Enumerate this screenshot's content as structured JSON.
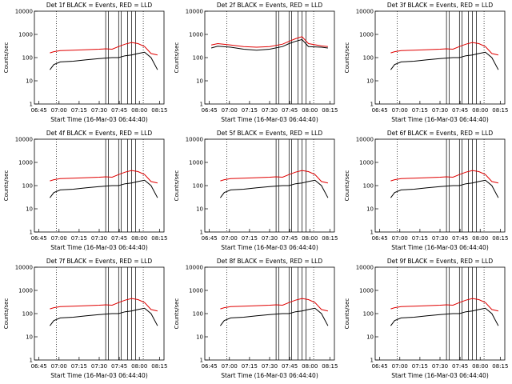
{
  "figure": {
    "xlabel": "Start Time (16-Mar-03 06:44:40)",
    "ylabel": "Counts/sec",
    "x_ticks": [
      "06:45",
      "07:00",
      "07:15",
      "07:30",
      "07:45",
      "08:00",
      "08:15"
    ],
    "y_ticks": [
      "1",
      "10",
      "100",
      "1000",
      "10000"
    ]
  },
  "colors": {
    "events": "#000000",
    "lld": "#e00000",
    "axes": "#000000"
  },
  "chart_data": [
    {
      "type": "line",
      "title": "Det 1f BLACK = Events, RED = LLD",
      "xlabel": "Start Time (16-Mar-03 06:44:40)",
      "ylabel": "Counts/sec",
      "x_range_min": [
        0,
        100
      ],
      "y_range": [
        1,
        10000
      ],
      "y_scale": "log",
      "x": [
        12,
        15,
        20,
        30,
        40,
        50,
        55,
        60,
        65,
        70,
        75,
        80,
        85,
        90,
        95
      ],
      "series": [
        {
          "name": "Events",
          "values": [
            30,
            50,
            65,
            70,
            80,
            90,
            95,
            100,
            100,
            120,
            130,
            150,
            170,
            100,
            30
          ]
        },
        {
          "name": "LLD",
          "values": [
            160,
            180,
            200,
            210,
            220,
            230,
            240,
            230,
            300,
            380,
            450,
            400,
            300,
            150,
            130
          ]
        }
      ],
      "vlines_dotted": [
        17,
        84
      ],
      "vlines_solid": [
        55,
        57,
        65,
        67,
        72,
        75,
        78
      ]
    },
    {
      "type": "line",
      "title": "Det 2f BLACK = Events, RED = LLD",
      "xlabel": "Start Time (16-Mar-03 06:44:40)",
      "ylabel": "Counts/sec",
      "x_range_min": [
        0,
        100
      ],
      "y_range": [
        1,
        10000
      ],
      "y_scale": "log",
      "x": [
        5,
        10,
        20,
        30,
        40,
        50,
        60,
        65,
        70,
        75,
        80,
        90,
        95
      ],
      "series": [
        {
          "name": "Events",
          "values": [
            260,
            310,
            280,
            230,
            210,
            230,
            300,
            400,
            500,
            600,
            300,
            280,
            260
          ]
        },
        {
          "name": "LLD",
          "values": [
            350,
            400,
            350,
            300,
            280,
            300,
            380,
            500,
            650,
            800,
            400,
            320,
            300
          ]
        }
      ],
      "vlines_dotted": [
        17,
        84
      ],
      "vlines_solid": [
        55,
        57,
        65,
        67,
        72,
        75,
        78
      ]
    },
    {
      "type": "line",
      "title": "Det 3f BLACK = Events, RED = LLD",
      "xlabel": "Start Time (16-Mar-03 06:44:40)",
      "ylabel": "Counts/sec",
      "x_range_min": [
        0,
        100
      ],
      "y_range": [
        1,
        10000
      ],
      "y_scale": "log",
      "x": [
        12,
        15,
        20,
        30,
        40,
        50,
        55,
        60,
        65,
        70,
        75,
        80,
        85,
        90,
        95
      ],
      "series": [
        {
          "name": "Events",
          "values": [
            30,
            50,
            65,
            70,
            80,
            90,
            95,
            100,
            100,
            120,
            130,
            150,
            170,
            100,
            30
          ]
        },
        {
          "name": "LLD",
          "values": [
            160,
            180,
            200,
            210,
            220,
            230,
            240,
            230,
            300,
            380,
            450,
            400,
            300,
            150,
            130
          ]
        }
      ],
      "vlines_dotted": [
        17,
        84
      ],
      "vlines_solid": [
        55,
        57,
        65,
        67,
        72,
        75,
        78
      ]
    },
    {
      "type": "line",
      "title": "Det 4f BLACK = Events, RED = LLD",
      "xlabel": "Start Time (16-Mar-03 06:44:40)",
      "ylabel": "Counts/sec",
      "x_range_min": [
        0,
        100
      ],
      "y_range": [
        1,
        10000
      ],
      "y_scale": "log",
      "x": [
        12,
        15,
        20,
        30,
        40,
        50,
        55,
        60,
        65,
        70,
        75,
        80,
        85,
        90,
        95
      ],
      "series": [
        {
          "name": "Events",
          "values": [
            30,
            50,
            65,
            70,
            80,
            90,
            95,
            100,
            100,
            120,
            130,
            150,
            170,
            100,
            30
          ]
        },
        {
          "name": "LLD",
          "values": [
            160,
            180,
            200,
            210,
            220,
            230,
            240,
            230,
            300,
            380,
            450,
            400,
            300,
            150,
            130
          ]
        }
      ],
      "vlines_dotted": [
        17,
        84
      ],
      "vlines_solid": [
        55,
        57,
        65,
        67,
        72,
        75,
        78
      ]
    },
    {
      "type": "line",
      "title": "Det 5f BLACK = Events, RED = LLD",
      "xlabel": "Start Time (16-Mar-03 06:44:40)",
      "ylabel": "Counts/sec",
      "x_range_min": [
        0,
        100
      ],
      "y_range": [
        1,
        10000
      ],
      "y_scale": "log",
      "x": [
        12,
        15,
        20,
        30,
        40,
        50,
        55,
        60,
        65,
        70,
        75,
        80,
        85,
        90,
        95
      ],
      "series": [
        {
          "name": "Events",
          "values": [
            30,
            50,
            65,
            70,
            80,
            90,
            95,
            100,
            100,
            120,
            130,
            150,
            170,
            100,
            30
          ]
        },
        {
          "name": "LLD",
          "values": [
            160,
            180,
            200,
            210,
            220,
            230,
            240,
            230,
            300,
            380,
            450,
            400,
            300,
            150,
            130
          ]
        }
      ],
      "vlines_dotted": [
        17,
        84
      ],
      "vlines_solid": [
        55,
        57,
        65,
        67,
        72,
        75,
        78
      ]
    },
    {
      "type": "line",
      "title": "Det 6f BLACK = Events, RED = LLD",
      "xlabel": "Start Time (16-Mar-03 06:44:40)",
      "ylabel": "Counts/sec",
      "x_range_min": [
        0,
        100
      ],
      "y_range": [
        1,
        10000
      ],
      "y_scale": "log",
      "x": [
        12,
        15,
        20,
        30,
        40,
        50,
        55,
        60,
        65,
        70,
        75,
        80,
        85,
        90,
        95
      ],
      "series": [
        {
          "name": "Events",
          "values": [
            30,
            50,
            65,
            70,
            80,
            90,
            95,
            100,
            100,
            120,
            130,
            150,
            170,
            100,
            30
          ]
        },
        {
          "name": "LLD",
          "values": [
            160,
            180,
            200,
            210,
            220,
            230,
            240,
            230,
            300,
            380,
            450,
            400,
            300,
            150,
            130
          ]
        }
      ],
      "vlines_dotted": [
        17,
        84
      ],
      "vlines_solid": [
        55,
        57,
        65,
        67,
        72,
        75,
        78
      ]
    },
    {
      "type": "line",
      "title": "Det 7f BLACK = Events, RED = LLD",
      "xlabel": "Start Time (16-Mar-03 06:44:40)",
      "ylabel": "Counts/sec",
      "x_range_min": [
        0,
        100
      ],
      "y_range": [
        1,
        10000
      ],
      "y_scale": "log",
      "x": [
        12,
        15,
        20,
        30,
        40,
        50,
        55,
        60,
        65,
        70,
        75,
        80,
        85,
        90,
        95
      ],
      "series": [
        {
          "name": "Events",
          "values": [
            30,
            50,
            65,
            70,
            80,
            90,
            95,
            100,
            100,
            120,
            130,
            150,
            170,
            100,
            30
          ]
        },
        {
          "name": "LLD",
          "values": [
            160,
            180,
            200,
            210,
            220,
            230,
            240,
            230,
            300,
            380,
            450,
            400,
            300,
            150,
            130
          ]
        }
      ],
      "vlines_dotted": [
        17,
        84
      ],
      "vlines_solid": [
        55,
        57,
        65,
        67,
        72,
        75,
        78
      ]
    },
    {
      "type": "line",
      "title": "Det 8f BLACK = Events, RED = LLD",
      "xlabel": "Start Time (16-Mar-03 06:44:40)",
      "ylabel": "Counts/sec",
      "x_range_min": [
        0,
        100
      ],
      "y_range": [
        1,
        10000
      ],
      "y_scale": "log",
      "x": [
        12,
        15,
        20,
        30,
        40,
        50,
        55,
        60,
        65,
        70,
        75,
        80,
        85,
        90,
        95
      ],
      "series": [
        {
          "name": "Events",
          "values": [
            30,
            50,
            65,
            70,
            80,
            90,
            95,
            100,
            100,
            120,
            130,
            150,
            170,
            100,
            30
          ]
        },
        {
          "name": "LLD",
          "values": [
            160,
            180,
            200,
            210,
            220,
            230,
            240,
            230,
            300,
            380,
            450,
            400,
            300,
            150,
            130
          ]
        }
      ],
      "vlines_dotted": [
        17,
        84
      ],
      "vlines_solid": [
        55,
        57,
        65,
        67,
        72,
        75,
        78
      ]
    },
    {
      "type": "line",
      "title": "Det 9f BLACK = Events, RED = LLD",
      "xlabel": "Start Time (16-Mar-03 06:44:40)",
      "ylabel": "Counts/sec",
      "x_range_min": [
        0,
        100
      ],
      "y_range": [
        1,
        10000
      ],
      "y_scale": "log",
      "x": [
        12,
        15,
        20,
        30,
        40,
        50,
        55,
        60,
        65,
        70,
        75,
        80,
        85,
        90,
        95
      ],
      "series": [
        {
          "name": "Events",
          "values": [
            30,
            50,
            65,
            70,
            80,
            90,
            95,
            100,
            100,
            120,
            130,
            150,
            170,
            100,
            30
          ]
        },
        {
          "name": "LLD",
          "values": [
            160,
            180,
            200,
            210,
            220,
            230,
            240,
            230,
            300,
            380,
            450,
            400,
            300,
            150,
            130
          ]
        }
      ],
      "vlines_dotted": [
        17,
        84
      ],
      "vlines_solid": [
        55,
        57,
        65,
        67,
        72,
        75,
        78
      ]
    }
  ]
}
